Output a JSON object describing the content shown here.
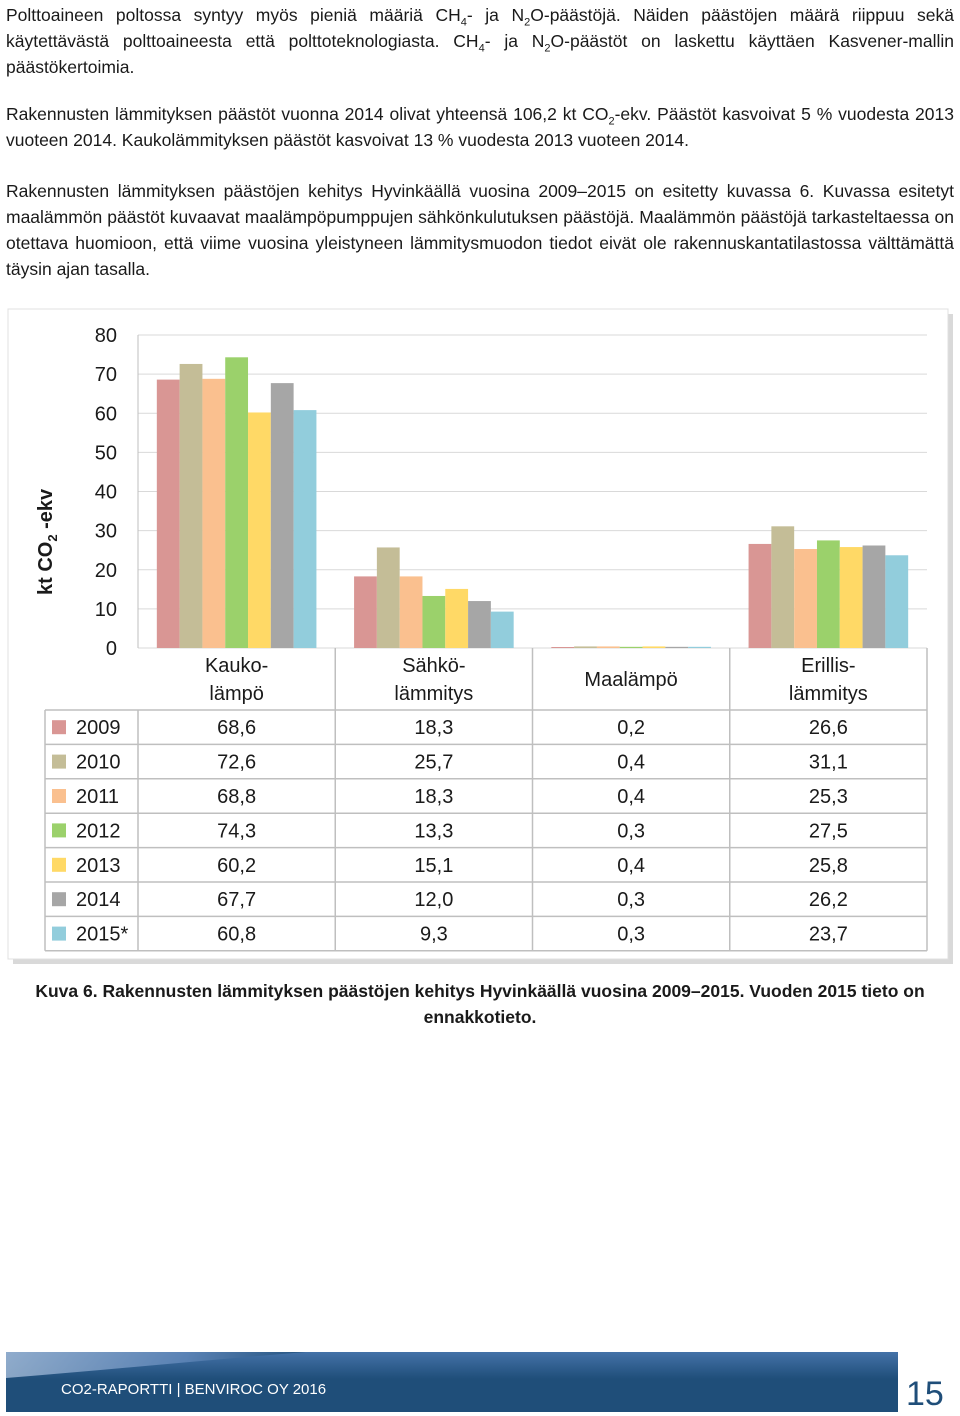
{
  "text": {
    "p1": {
      "a": "Polttoaineen poltossa syntyy myös pieniä määriä CH",
      "s1": "4",
      "b": "- ja N",
      "s2": "2",
      "c": "O-päästöjä. Näiden päästöjen määrä riippuu sekä käytettävästä polttoaineesta että polttoteknologiasta. CH",
      "s3": "4",
      "d": "- ja N",
      "s4": "2",
      "e": "O-päästöt on laskettu käyttäen Kasvener-mallin päästökertoimia."
    },
    "p2": {
      "a": "Rakennusten lämmityksen päästöt vuonna 2014 olivat yhteensä 106,2 kt CO",
      "s1": "2",
      "b": "-ekv. Päästöt kasvoivat 5 % vuodesta 2013 vuoteen 2014. Kaukolämmityksen päästöt kasvoivat 13 % vuodesta 2013 vuoteen 2014."
    },
    "p3": "Rakennusten lämmityksen päästöjen kehitys Hyvinkäällä vuosina 2009–2015 on esitetty kuvassa 6. Kuvassa esitetyt maalämmön päästöt kuvaavat maalämpöpumppujen sähkönkulutuksen päästöjä. Maalämmön päästöjä tarkasteltaessa on otettava huomioon, että viime vuosina yleistyneen lämmitysmuodon tiedot eivät ole rakennuskantatilastossa välttämättä täysin ajan tasalla.",
    "caption": "Kuva 6. Rakennusten lämmityksen päästöjen kehitys Hyvinkäällä vuosina 2009–2015. Vuoden 2015 tieto on ennakkotieto.",
    "footer": "CO2-RAPORTTI | BENVIROC OY 2016",
    "page_number": "15"
  },
  "chart_data": {
    "type": "bar",
    "ylabel_main": "kt CO",
    "ylabel_sub": "2",
    "ylabel_tail": " -ekv",
    "ylim": [
      0,
      80
    ],
    "yticks": [
      "0",
      "10",
      "20",
      "30",
      "40",
      "50",
      "60",
      "70",
      "80"
    ],
    "grid": true,
    "categories": [
      {
        "line1": "Kauko-",
        "line2": "lämpö"
      },
      {
        "line1": "Sähkö-",
        "line2": "lämmitys"
      },
      {
        "line1": "Maalämpö",
        "line2": ""
      },
      {
        "line1": "Erillis-",
        "line2": "lämmitys"
      }
    ],
    "series": [
      {
        "name": "2009",
        "color": "#d99694",
        "values": [
          68.6,
          18.3,
          0.2,
          26.6
        ],
        "labels": [
          "68,6",
          "18,3",
          "0,2",
          "26,6"
        ]
      },
      {
        "name": "2010",
        "color": "#c4bd97",
        "values": [
          72.6,
          25.7,
          0.4,
          31.1
        ],
        "labels": [
          "72,6",
          "25,7",
          "0,4",
          "31,1"
        ]
      },
      {
        "name": "2011",
        "color": "#fac08f",
        "values": [
          68.8,
          18.3,
          0.4,
          25.3
        ],
        "labels": [
          "68,8",
          "18,3",
          "0,4",
          "25,3"
        ]
      },
      {
        "name": "2012",
        "color": "#9bd16b",
        "values": [
          74.3,
          13.3,
          0.3,
          27.5
        ],
        "labels": [
          "74,3",
          "13,3",
          "0,3",
          "27,5"
        ]
      },
      {
        "name": "2013",
        "color": "#ffd966",
        "values": [
          60.2,
          15.1,
          0.4,
          25.8
        ],
        "labels": [
          "60,2",
          "15,1",
          "0,4",
          "25,8"
        ]
      },
      {
        "name": "2014",
        "color": "#a6a6a6",
        "values": [
          67.7,
          12.0,
          0.3,
          26.2
        ],
        "labels": [
          "67,7",
          "12,0",
          "0,3",
          "26,2"
        ]
      },
      {
        "name": "2015*",
        "color": "#92cddc",
        "values": [
          60.8,
          9.3,
          0.3,
          23.7
        ],
        "labels": [
          "60,8",
          "9,3",
          "0,3",
          "23,7"
        ]
      }
    ]
  },
  "colors": {
    "footer_band": "#1f4e79",
    "footer_band_light": "#4472a8",
    "page_number": "#1f4e79"
  }
}
